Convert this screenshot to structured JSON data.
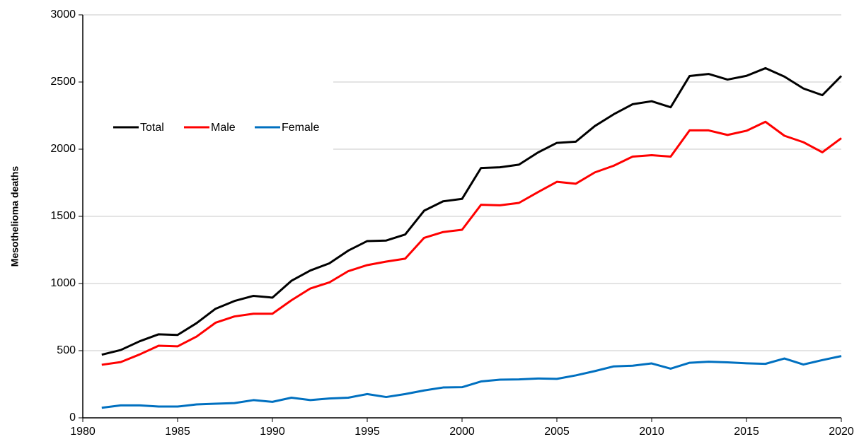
{
  "chart_data": {
    "type": "line",
    "y_label": "Mesothelioma deaths",
    "x": [
      1981,
      1982,
      1983,
      1984,
      1985,
      1986,
      1987,
      1988,
      1989,
      1990,
      1991,
      1992,
      1993,
      1994,
      1995,
      1996,
      1997,
      1998,
      1999,
      2000,
      2001,
      2002,
      2003,
      2004,
      2005,
      2006,
      2007,
      2008,
      2009,
      2010,
      2011,
      2012,
      2013,
      2014,
      2015,
      2016,
      2017,
      2018,
      2019,
      2020
    ],
    "series": [
      {
        "name": "Total",
        "color": "#000000",
        "values": [
          470,
          505,
          570,
          622,
          617,
          705,
          812,
          870,
          908,
          895,
          1020,
          1097,
          1150,
          1245,
          1316,
          1320,
          1365,
          1542,
          1612,
          1630,
          1860,
          1865,
          1885,
          1975,
          2047,
          2056,
          2172,
          2260,
          2335,
          2357,
          2312,
          2545,
          2560,
          2518,
          2546,
          2603,
          2540,
          2452,
          2402,
          2545
        ]
      },
      {
        "name": "Male",
        "color": "#ff0000",
        "values": [
          395,
          415,
          472,
          537,
          532,
          605,
          708,
          755,
          775,
          775,
          875,
          963,
          1008,
          1092,
          1137,
          1163,
          1185,
          1340,
          1383,
          1400,
          1586,
          1582,
          1600,
          1680,
          1757,
          1743,
          1827,
          1877,
          1945,
          1955,
          1945,
          2140,
          2140,
          2106,
          2137,
          2204,
          2100,
          2052,
          1977,
          2082
        ]
      },
      {
        "name": "Female",
        "color": "#0070c0",
        "values": [
          75,
          93,
          93,
          84,
          84,
          100,
          105,
          110,
          132,
          119,
          150,
          132,
          144,
          150,
          177,
          155,
          177,
          204,
          226,
          228,
          271,
          284,
          286,
          293,
          290,
          316,
          348,
          383,
          388,
          405,
          366,
          410,
          418,
          413,
          406,
          402,
          442,
          397,
          430,
          460
        ]
      }
    ],
    "xlim": [
      1980,
      2020
    ],
    "xticks": [
      1980,
      1985,
      1990,
      1995,
      2000,
      2005,
      2010,
      2015,
      2020
    ],
    "ylim": [
      0,
      3000
    ],
    "yticks": [
      0,
      500,
      1000,
      1500,
      2000,
      2500,
      3000
    ],
    "grid": true
  }
}
